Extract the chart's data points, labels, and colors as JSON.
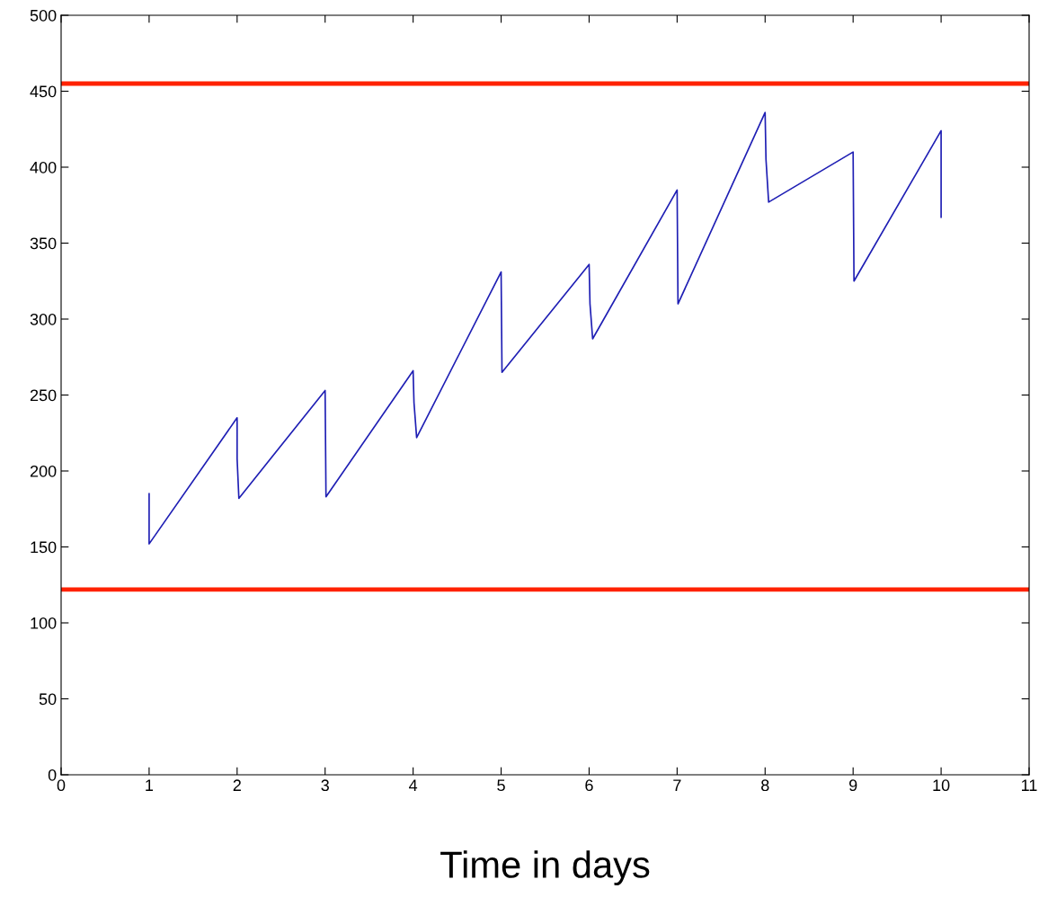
{
  "chart_data": {
    "type": "line",
    "xlabel": "Time in days",
    "series": [
      {
        "color": "#1f1fb4",
        "x": [
          1,
          1,
          2,
          2,
          2.02,
          3,
          3.01,
          4,
          4.01,
          4.04,
          5,
          5.01,
          6,
          6.01,
          6.04,
          7,
          7.01,
          8,
          8.01,
          8.04,
          9,
          9.01,
          10,
          10
        ],
        "values": [
          185,
          152,
          235,
          208,
          182,
          253,
          183,
          266,
          245,
          222,
          331,
          265,
          336,
          310,
          287,
          385,
          310,
          436,
          405,
          377,
          410,
          325,
          424,
          367
        ]
      }
    ],
    "xlim": [
      0,
      11
    ],
    "xticks": [
      0,
      1,
      2,
      3,
      4,
      5,
      6,
      7,
      8,
      9,
      10,
      11
    ],
    "ylim": [
      0,
      500
    ],
    "yticks": [
      0,
      50,
      100,
      150,
      200,
      250,
      300,
      350,
      400,
      450,
      500
    ],
    "ref_lines": [
      {
        "axis": "y",
        "value": 455,
        "color": "#ff2200"
      },
      {
        "axis": "y",
        "value": 122,
        "color": "#ff2200"
      }
    ],
    "grid": false,
    "legend": false,
    "marker": "none",
    "line_style": "solid"
  }
}
